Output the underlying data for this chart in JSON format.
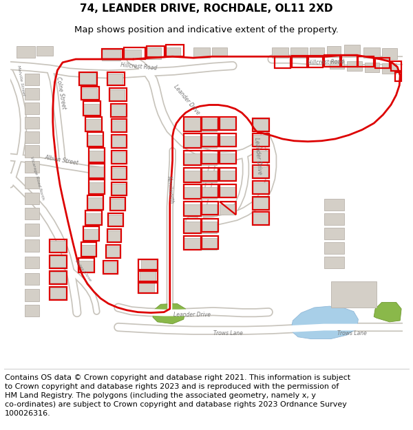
{
  "title_line1": "74, LEANDER DRIVE, ROCHDALE, OL11 2XD",
  "title_line2": "Map shows position and indicative extent of the property.",
  "footer_text": "Contains OS data © Crown copyright and database right 2021. This information is subject\nto Crown copyright and database rights 2023 and is reproduced with the permission of\nHM Land Registry. The polygons (including the associated geometry, namely x, y\nco-ordinates) are subject to Crown copyright and database rights 2023 Ordnance Survey\n100026316.",
  "title_fontsize": 11,
  "subtitle_fontsize": 9.5,
  "footer_fontsize": 8,
  "fig_width": 6.0,
  "fig_height": 6.25,
  "dpi": 100,
  "map_bg_color": "#f0ede6",
  "title_color": "#000000",
  "footer_color": "#000000",
  "highlight_color": "#dd0000",
  "water_color": "#aacfeb",
  "green_color": "#8ab84a",
  "road_fill": "#ffffff",
  "road_edge": "#c8c4bc",
  "building_fill": "#d4cfc7",
  "building_edge": "#b8b2aa",
  "label_color": "#777777"
}
